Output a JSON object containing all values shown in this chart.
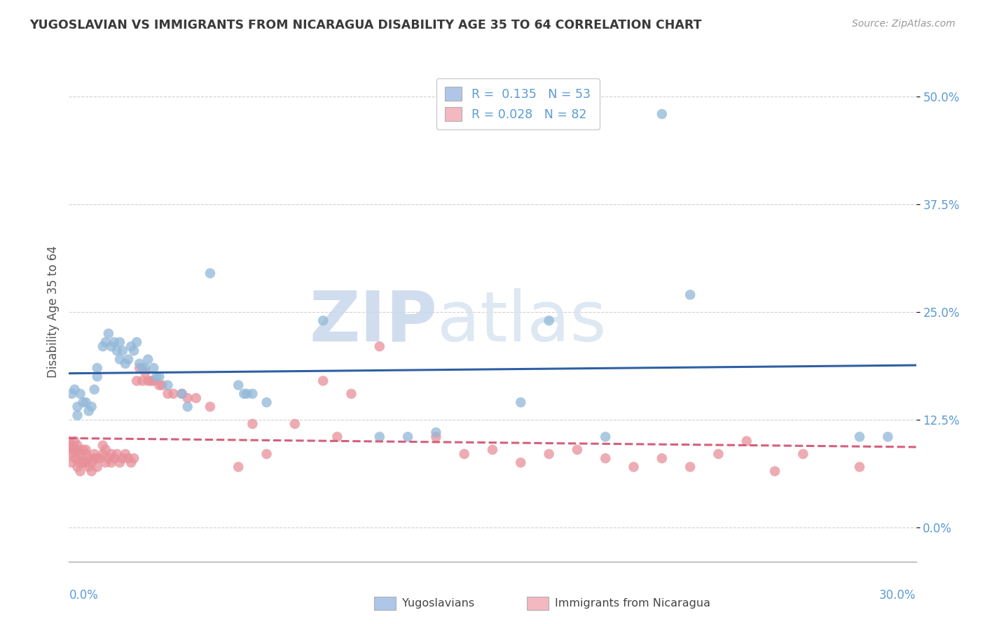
{
  "title": "YUGOSLAVIAN VS IMMIGRANTS FROM NICARAGUA DISABILITY AGE 35 TO 64 CORRELATION CHART",
  "source": "Source: ZipAtlas.com",
  "ylabel": "Disability Age 35 to 64",
  "yticks": [
    0.0,
    0.125,
    0.25,
    0.375,
    0.5
  ],
  "ytick_labels": [
    "0.0%",
    "12.5%",
    "25.0%",
    "37.5%",
    "50.0%"
  ],
  "xmin": 0.0,
  "xmax": 0.3,
  "ymin": -0.04,
  "ymax": 0.54,
  "legend_label_blue": "R =  0.135   N = 53",
  "legend_label_pink": "R = 0.028   N = 82",
  "legend_color_blue": "#aec6e8",
  "legend_color_pink": "#f4b8c1",
  "bottom_legend_blue": "Yugoslavians",
  "bottom_legend_pink": "Immigrants from Nicaragua",
  "watermark_zip": "ZIP",
  "watermark_atlas": "atlas",
  "blue_scatter": [
    [
      0.001,
      0.155
    ],
    [
      0.002,
      0.16
    ],
    [
      0.003,
      0.14
    ],
    [
      0.003,
      0.13
    ],
    [
      0.004,
      0.155
    ],
    [
      0.005,
      0.145
    ],
    [
      0.006,
      0.145
    ],
    [
      0.007,
      0.135
    ],
    [
      0.008,
      0.14
    ],
    [
      0.009,
      0.16
    ],
    [
      0.01,
      0.175
    ],
    [
      0.01,
      0.185
    ],
    [
      0.012,
      0.21
    ],
    [
      0.013,
      0.215
    ],
    [
      0.014,
      0.225
    ],
    [
      0.015,
      0.21
    ],
    [
      0.016,
      0.215
    ],
    [
      0.017,
      0.205
    ],
    [
      0.018,
      0.215
    ],
    [
      0.018,
      0.195
    ],
    [
      0.019,
      0.205
    ],
    [
      0.02,
      0.19
    ],
    [
      0.021,
      0.195
    ],
    [
      0.022,
      0.21
    ],
    [
      0.023,
      0.205
    ],
    [
      0.024,
      0.215
    ],
    [
      0.025,
      0.19
    ],
    [
      0.026,
      0.185
    ],
    [
      0.027,
      0.185
    ],
    [
      0.028,
      0.195
    ],
    [
      0.03,
      0.185
    ],
    [
      0.031,
      0.175
    ],
    [
      0.032,
      0.175
    ],
    [
      0.035,
      0.165
    ],
    [
      0.04,
      0.155
    ],
    [
      0.042,
      0.14
    ],
    [
      0.05,
      0.295
    ],
    [
      0.06,
      0.165
    ],
    [
      0.062,
      0.155
    ],
    [
      0.063,
      0.155
    ],
    [
      0.065,
      0.155
    ],
    [
      0.07,
      0.145
    ],
    [
      0.09,
      0.24
    ],
    [
      0.11,
      0.105
    ],
    [
      0.12,
      0.105
    ],
    [
      0.13,
      0.11
    ],
    [
      0.17,
      0.24
    ],
    [
      0.19,
      0.105
    ],
    [
      0.22,
      0.27
    ],
    [
      0.21,
      0.48
    ],
    [
      0.28,
      0.105
    ],
    [
      0.29,
      0.105
    ],
    [
      0.16,
      0.145
    ]
  ],
  "pink_scatter": [
    [
      0.0,
      0.09
    ],
    [
      0.0,
      0.1
    ],
    [
      0.001,
      0.075
    ],
    [
      0.001,
      0.085
    ],
    [
      0.001,
      0.095
    ],
    [
      0.002,
      0.08
    ],
    [
      0.002,
      0.09
    ],
    [
      0.002,
      0.1
    ],
    [
      0.003,
      0.07
    ],
    [
      0.003,
      0.08
    ],
    [
      0.003,
      0.09
    ],
    [
      0.003,
      0.095
    ],
    [
      0.004,
      0.065
    ],
    [
      0.004,
      0.075
    ],
    [
      0.004,
      0.085
    ],
    [
      0.005,
      0.075
    ],
    [
      0.005,
      0.09
    ],
    [
      0.006,
      0.075
    ],
    [
      0.006,
      0.085
    ],
    [
      0.006,
      0.09
    ],
    [
      0.007,
      0.07
    ],
    [
      0.007,
      0.08
    ],
    [
      0.008,
      0.065
    ],
    [
      0.008,
      0.075
    ],
    [
      0.009,
      0.08
    ],
    [
      0.009,
      0.085
    ],
    [
      0.01,
      0.07
    ],
    [
      0.01,
      0.08
    ],
    [
      0.011,
      0.08
    ],
    [
      0.012,
      0.085
    ],
    [
      0.012,
      0.095
    ],
    [
      0.013,
      0.075
    ],
    [
      0.013,
      0.09
    ],
    [
      0.014,
      0.08
    ],
    [
      0.015,
      0.075
    ],
    [
      0.015,
      0.085
    ],
    [
      0.016,
      0.08
    ],
    [
      0.017,
      0.085
    ],
    [
      0.018,
      0.075
    ],
    [
      0.019,
      0.08
    ],
    [
      0.02,
      0.085
    ],
    [
      0.021,
      0.08
    ],
    [
      0.022,
      0.075
    ],
    [
      0.023,
      0.08
    ],
    [
      0.024,
      0.17
    ],
    [
      0.025,
      0.185
    ],
    [
      0.026,
      0.17
    ],
    [
      0.027,
      0.18
    ],
    [
      0.028,
      0.17
    ],
    [
      0.029,
      0.17
    ],
    [
      0.03,
      0.17
    ],
    [
      0.032,
      0.165
    ],
    [
      0.033,
      0.165
    ],
    [
      0.035,
      0.155
    ],
    [
      0.037,
      0.155
    ],
    [
      0.04,
      0.155
    ],
    [
      0.042,
      0.15
    ],
    [
      0.045,
      0.15
    ],
    [
      0.05,
      0.14
    ],
    [
      0.06,
      0.07
    ],
    [
      0.065,
      0.12
    ],
    [
      0.07,
      0.085
    ],
    [
      0.08,
      0.12
    ],
    [
      0.09,
      0.17
    ],
    [
      0.095,
      0.105
    ],
    [
      0.1,
      0.155
    ],
    [
      0.11,
      0.21
    ],
    [
      0.13,
      0.105
    ],
    [
      0.14,
      0.085
    ],
    [
      0.15,
      0.09
    ],
    [
      0.16,
      0.075
    ],
    [
      0.17,
      0.085
    ],
    [
      0.18,
      0.09
    ],
    [
      0.19,
      0.08
    ],
    [
      0.2,
      0.07
    ],
    [
      0.21,
      0.08
    ],
    [
      0.22,
      0.07
    ],
    [
      0.23,
      0.085
    ],
    [
      0.24,
      0.1
    ],
    [
      0.25,
      0.065
    ],
    [
      0.26,
      0.085
    ],
    [
      0.28,
      0.07
    ]
  ],
  "blue_line_color": "#2e5fa3",
  "pink_line_color": "#d45f7a",
  "blue_dot_color": "#92b8d8",
  "pink_dot_color": "#e8909a",
  "background_color": "#ffffff",
  "grid_color": "#cccccc",
  "title_color": "#3a3a3a",
  "axis_label_color": "#5b9bd5",
  "watermark_color": "#c8d8ec"
}
